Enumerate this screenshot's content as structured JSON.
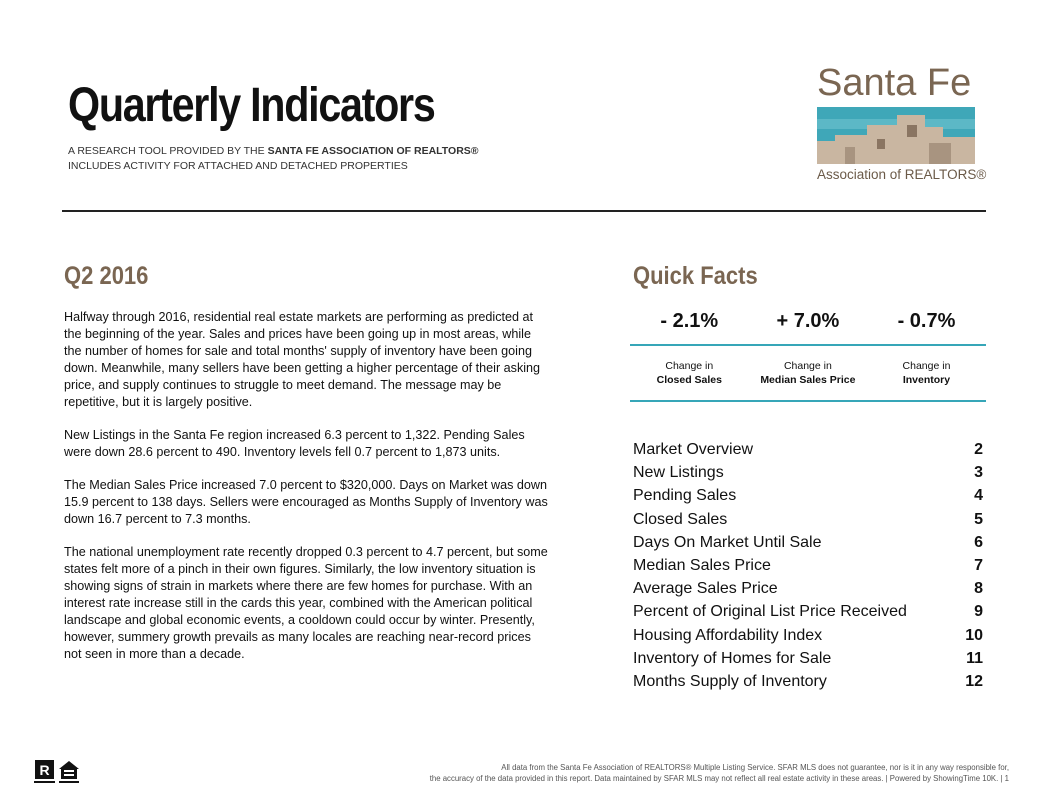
{
  "header": {
    "title": "Quarterly Indicators",
    "subtitle_line1_prefix": "A RESEARCH TOOL PROVIDED BY THE",
    "subtitle_line1_bold": "SANTA FE ASSOCIATION OF REALTORS®",
    "subtitle_line2": "INCLUDES ACTIVITY FOR ATTACHED AND  DETACHED PROPERTIES"
  },
  "logo": {
    "top_text": "Santa Fe",
    "bottom_text": "Association of REALTORS®"
  },
  "report": {
    "period": "Q2 2016",
    "paragraphs": [
      "Halfway through 2016, residential real estate markets are performing as predicted at the beginning of the year. Sales and prices have been going up in most areas, while the number of homes for sale and total months' supply of inventory have been going down. Meanwhile, many sellers have been getting a higher percentage of their asking price, and supply continues to struggle to meet demand. The message may be repetitive, but it is largely positive.",
      "New Listings in the Santa Fe region increased 6.3 percent to 1,322. Pending Sales were down 28.6 percent to 490. Inventory levels fell 0.7 percent to 1,873 units.",
      "The Median Sales Price increased 7.0 percent to $320,000. Days on Market was down 15.9 percent to 138 days. Sellers were encouraged as Months Supply of Inventory was down 16.7 percent to 7.3 months.",
      "The national unemployment rate recently dropped 0.3 percent to 4.7 percent, but some states felt more of a pinch in their own figures. Similarly, the low inventory situation is showing signs of strain in markets where there are few homes for purchase. With an interest rate increase still in the cards this year, combined with the American political landscape and global economic events, a cooldown could occur by winter. Presently, however, summery growth prevails as many locales are reaching near-record prices not seen in more than a decade."
    ]
  },
  "quick_facts": {
    "heading": "Quick Facts",
    "items": [
      {
        "value": "- 2.1%",
        "label_top": "Change in",
        "label_bold": "Closed Sales"
      },
      {
        "value": "+ 7.0%",
        "label_top": "Change in",
        "label_bold": "Median Sales Price"
      },
      {
        "value": "- 0.7%",
        "label_top": "Change in",
        "label_bold": "Inventory"
      }
    ],
    "accent_color": "#36a6b8"
  },
  "toc": [
    {
      "label": "Market Overview",
      "page": "2"
    },
    {
      "label": "New Listings",
      "page": "3"
    },
    {
      "label": "Pending Sales",
      "page": "4"
    },
    {
      "label": "Closed Sales",
      "page": "5"
    },
    {
      "label": "Days On Market Until Sale",
      "page": "6"
    },
    {
      "label": "Median Sales Price",
      "page": "7"
    },
    {
      "label": "Average Sales Price",
      "page": "8"
    },
    {
      "label": "Percent of Original List Price Received",
      "page": "9"
    },
    {
      "label": "Housing Affordability Index",
      "page": "10"
    },
    {
      "label": "Inventory of Homes for Sale",
      "page": "11"
    },
    {
      "label": "Months Supply of Inventory",
      "page": "12"
    }
  ],
  "footer": {
    "line1": "All data from the Santa Fe Association of REALTORS® Multiple Listing Service. SFAR MLS does not guarantee, nor is it in any way responsible for,",
    "line2": "the accuracy of the data provided in this report. Data maintained by SFAR MLS may not reflect all real estate activity in these areas.  |  Powered by ShowingTime 10K.  |  1"
  },
  "icons": [
    "realtor-r-icon",
    "equal-housing-opportunity-icon"
  ],
  "colors": {
    "brand_brown": "#7a6652",
    "accent_teal": "#36a6b8"
  }
}
